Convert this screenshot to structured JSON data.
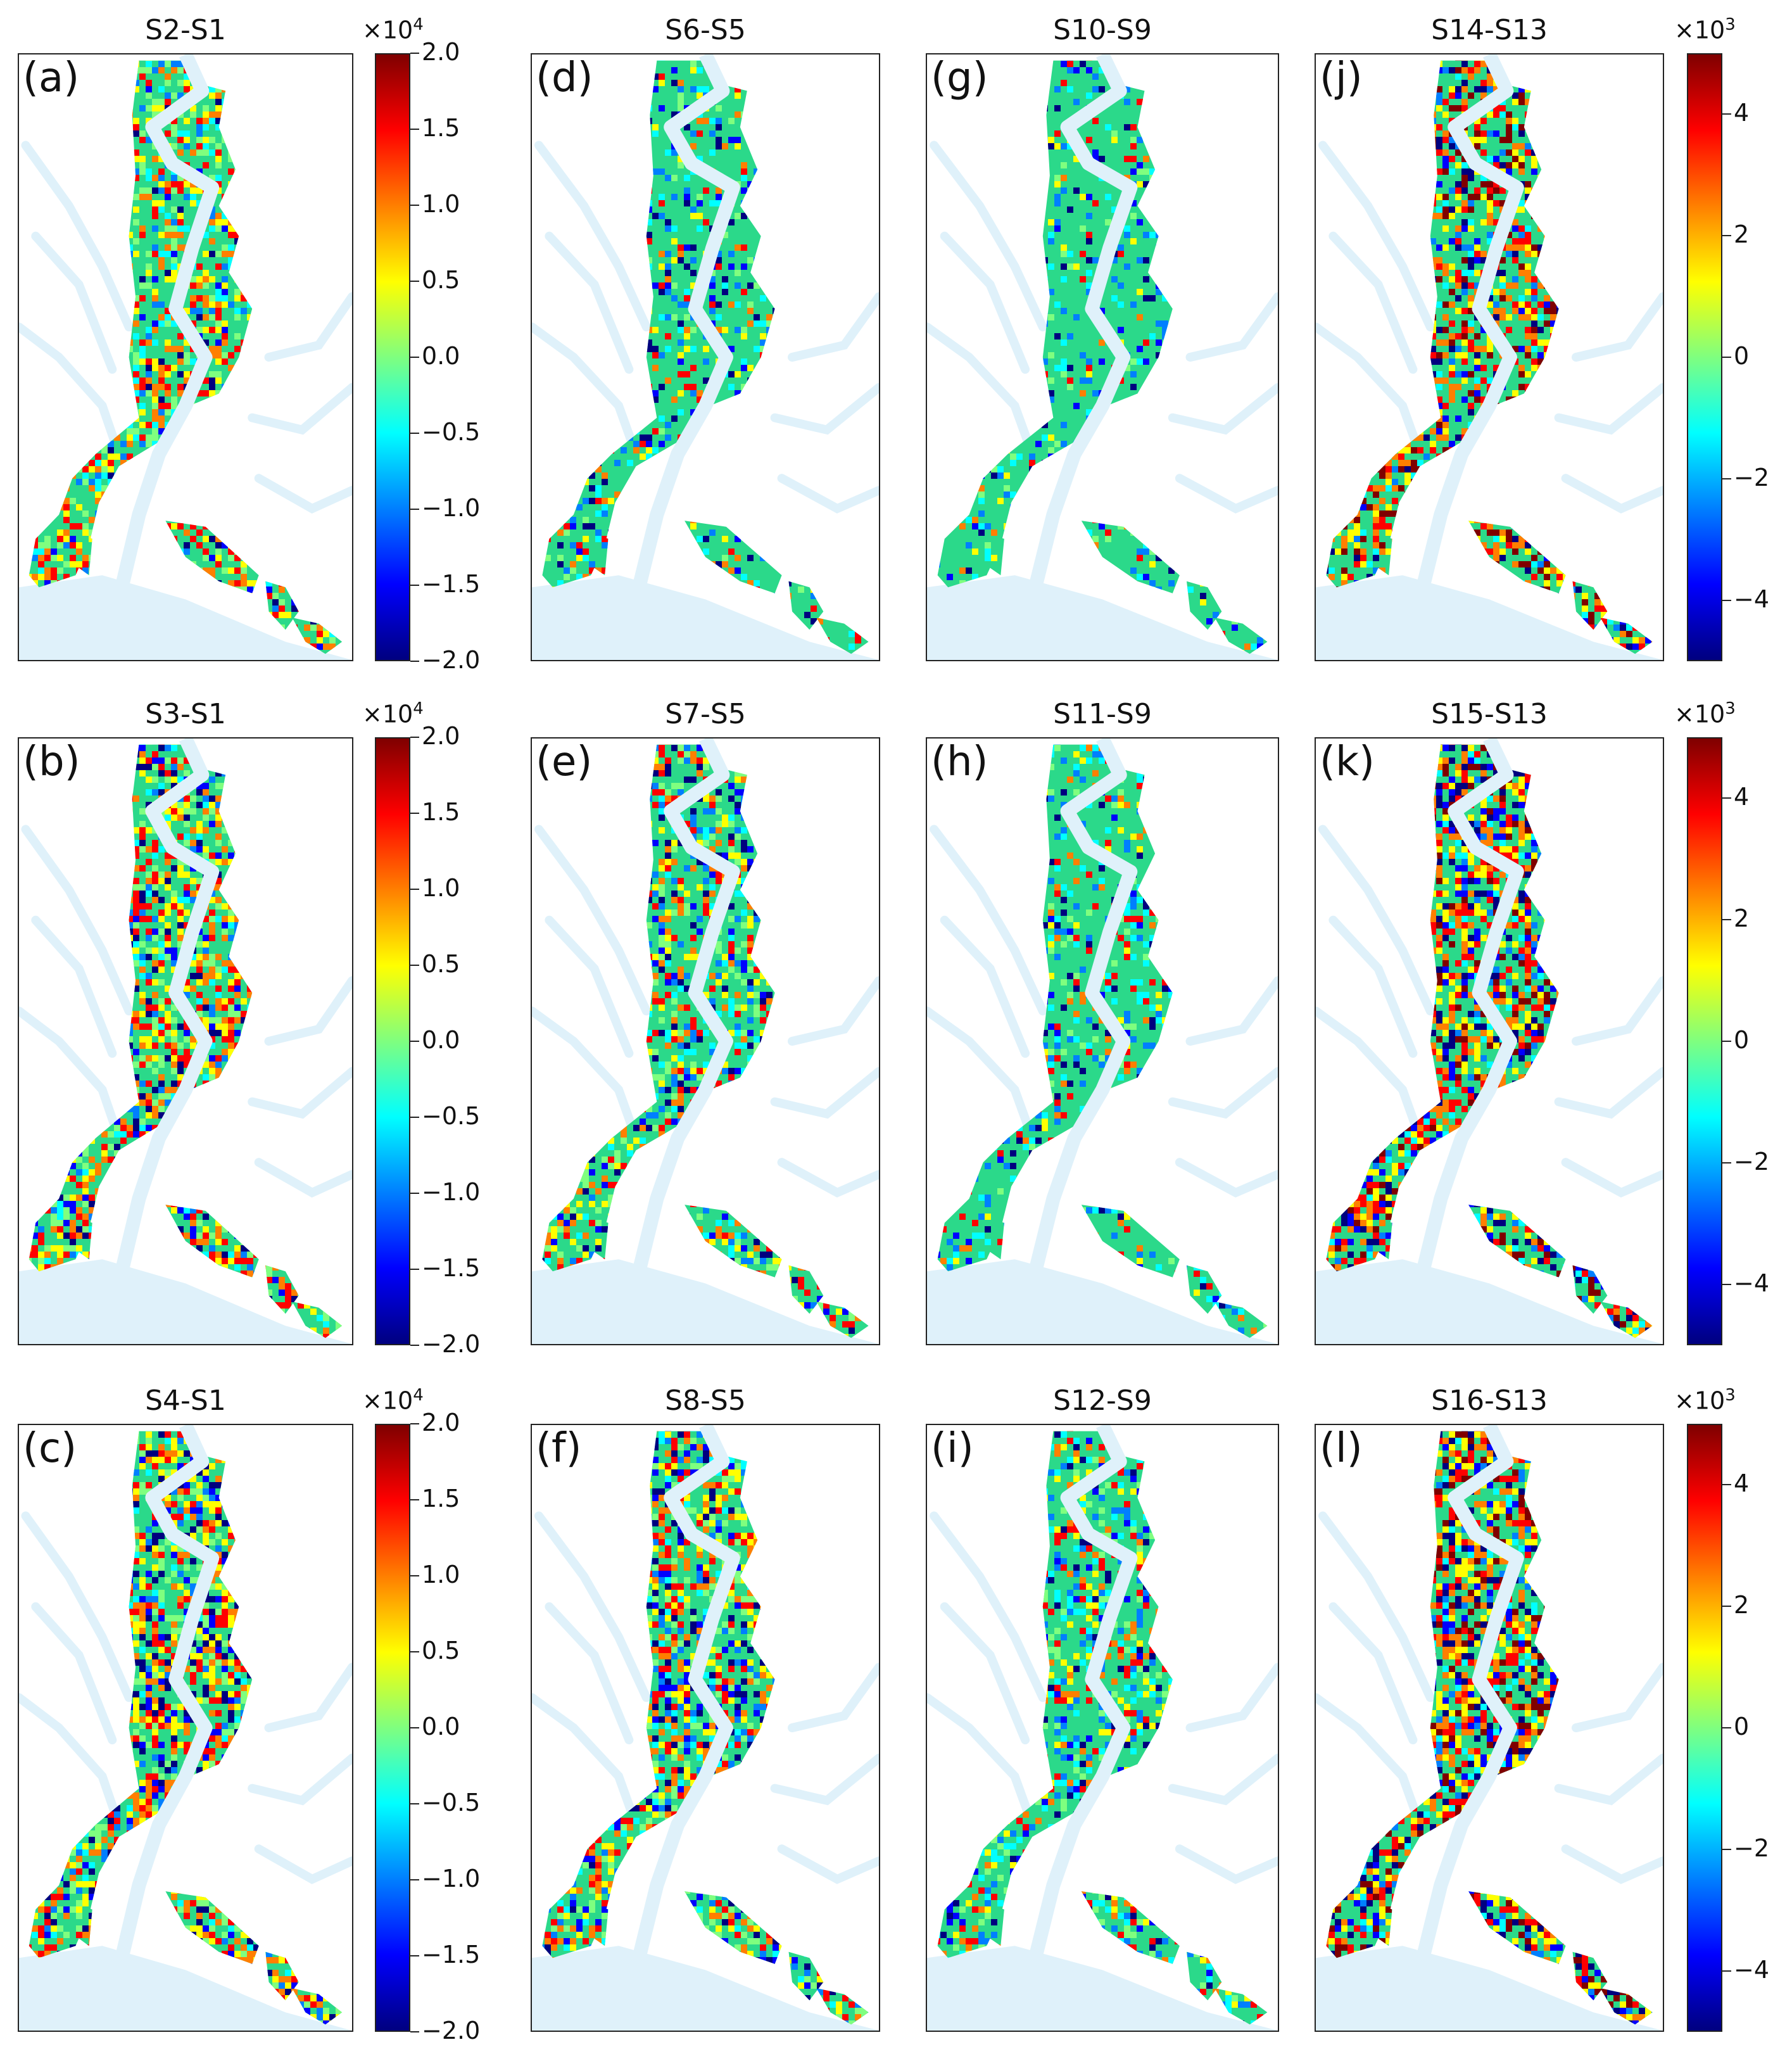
{
  "colormap": [
    "#00007f",
    "#0000ff",
    "#007fff",
    "#00ffff",
    "#7fff7f",
    "#ffff00",
    "#ff7f00",
    "#ff0000",
    "#7f0000"
  ],
  "colors": {
    "water": "#dff1fa",
    "frame": "#222222",
    "land": "#2bd98a"
  },
  "panels": [
    {
      "label": "(a)",
      "title": "S2-S1",
      "group": "A",
      "mix": [
        0.05,
        0.1,
        0.45,
        0.4
      ]
    },
    {
      "label": "(b)",
      "title": "S3-S1",
      "group": "A",
      "mix": [
        0.1,
        0.1,
        0.35,
        0.45
      ]
    },
    {
      "label": "(c)",
      "title": "S4-S1",
      "group": "A",
      "mix": [
        0.15,
        0.08,
        0.35,
        0.42
      ]
    },
    {
      "label": "(d)",
      "title": "S6-S5",
      "group": "B",
      "mix": [
        0.06,
        0.1,
        0.7,
        0.14
      ]
    },
    {
      "label": "(e)",
      "title": "S7-S5",
      "group": "B",
      "mix": [
        0.1,
        0.1,
        0.5,
        0.3
      ]
    },
    {
      "label": "(f)",
      "title": "S8-S5",
      "group": "B",
      "mix": [
        0.12,
        0.12,
        0.4,
        0.36
      ]
    },
    {
      "label": "(g)",
      "title": "S10-S9",
      "group": "B",
      "mix": [
        0.05,
        0.08,
        0.8,
        0.07
      ]
    },
    {
      "label": "(h)",
      "title": "S11-S9",
      "group": "B",
      "mix": [
        0.06,
        0.12,
        0.7,
        0.12
      ]
    },
    {
      "label": "(i)",
      "title": "S12-S9",
      "group": "B",
      "mix": [
        0.08,
        0.12,
        0.6,
        0.2
      ]
    },
    {
      "label": "(j)",
      "title": "S14-S13",
      "group": "C",
      "mix": [
        0.08,
        0.08,
        0.45,
        0.39
      ]
    },
    {
      "label": "(k)",
      "title": "S15-S13",
      "group": "C",
      "mix": [
        0.15,
        0.08,
        0.35,
        0.42
      ]
    },
    {
      "label": "(l)",
      "title": "S16-S13",
      "group": "C",
      "mix": [
        0.16,
        0.08,
        0.32,
        0.44
      ]
    }
  ],
  "colorbars": [
    {
      "multiplier": "×10",
      "exponent": "4",
      "range": [
        -2.0,
        2.0
      ],
      "ticks": [
        "2.0",
        "1.5",
        "1.0",
        "0.5",
        "0.0",
        "−0.5",
        "−1.0",
        "−1.5",
        "−2.0"
      ]
    },
    {
      "multiplier": "×10",
      "exponent": "4",
      "range": [
        -2.0,
        2.0
      ],
      "ticks": [
        "2.0",
        "1.5",
        "1.0",
        "0.5",
        "0.0",
        "−0.5",
        "−1.0",
        "−1.5",
        "−2.0"
      ]
    },
    {
      "multiplier": "×10",
      "exponent": "4",
      "range": [
        -2.0,
        2.0
      ],
      "ticks": [
        "2.0",
        "1.5",
        "1.0",
        "0.5",
        "0.0",
        "−0.5",
        "−1.0",
        "−1.5",
        "−2.0"
      ]
    },
    {
      "multiplier": "×10",
      "exponent": "3",
      "range": [
        -5,
        5
      ],
      "ticks": [
        "4",
        "2",
        "0",
        "−2",
        "−4"
      ]
    },
    {
      "multiplier": "×10",
      "exponent": "3",
      "range": [
        -5,
        5
      ],
      "ticks": [
        "4",
        "2",
        "0",
        "−2",
        "−4"
      ]
    },
    {
      "multiplier": "×10",
      "exponent": "3",
      "range": [
        -5,
        5
      ],
      "ticks": [
        "4",
        "2",
        "0",
        "−2",
        "−4"
      ]
    }
  ]
}
